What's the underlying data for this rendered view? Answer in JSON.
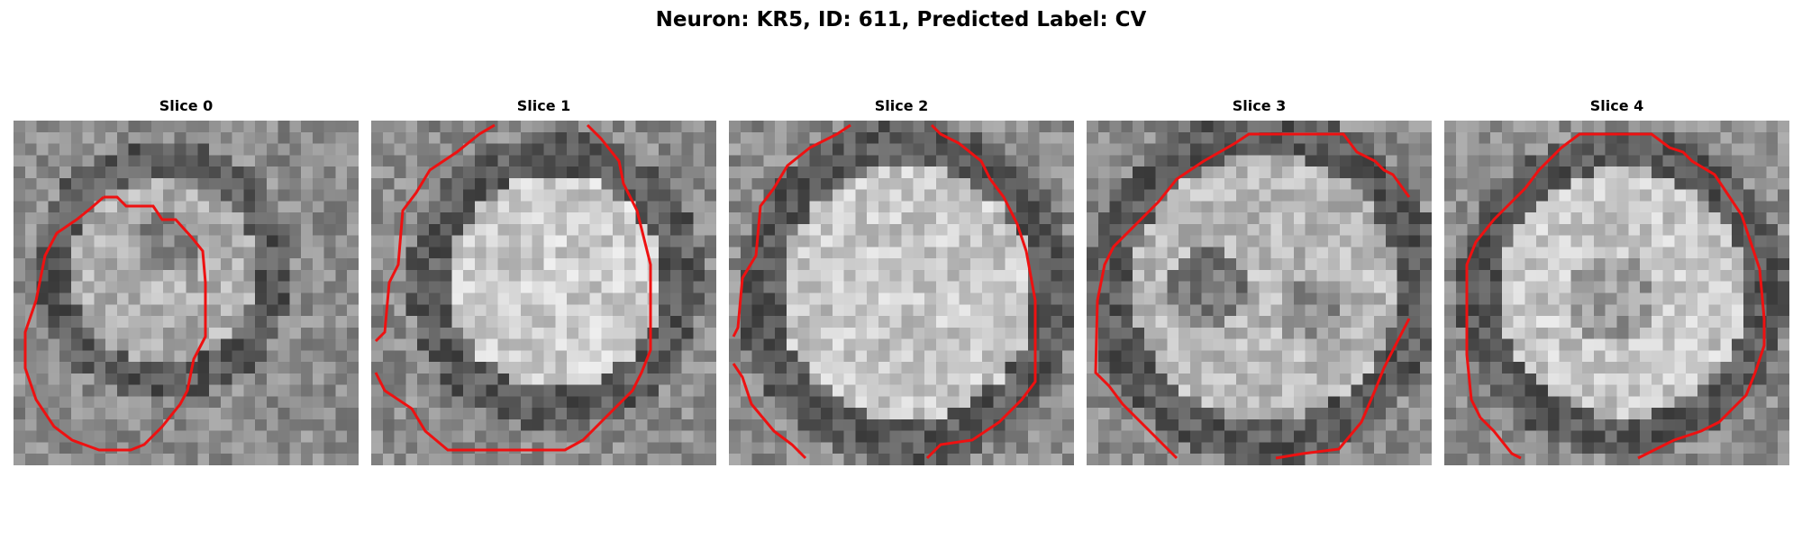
{
  "figure": {
    "title": "Neuron: KR5, ID: 611, Predicted Label: CV"
  },
  "panels": [
    {
      "title": "Slice 0"
    },
    {
      "title": "Slice 1"
    },
    {
      "title": "Slice 2"
    },
    {
      "title": "Slice 3"
    },
    {
      "title": "Slice 4"
    }
  ],
  "colors": {
    "contour": "#ee1111",
    "image": "grayscale"
  }
}
